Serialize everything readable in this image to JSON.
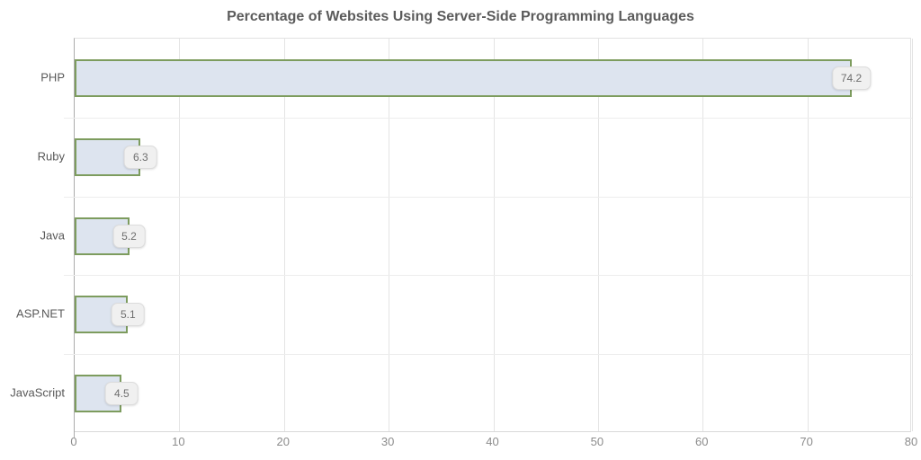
{
  "chart_data": {
    "type": "bar",
    "orientation": "horizontal",
    "title": "Percentage of Websites Using Server-Side Programming Languages",
    "categories": [
      "PHP",
      "Ruby",
      "Java",
      "ASP.NET",
      "JavaScript"
    ],
    "values": [
      74.2,
      6.3,
      5.2,
      5.1,
      4.5
    ],
    "value_labels": [
      "74.2",
      "6.3",
      "5.2",
      "5.1",
      "4.5"
    ],
    "xlabel": "",
    "ylabel": "",
    "xlim": [
      0,
      80
    ],
    "x_ticks": [
      0,
      10,
      20,
      30,
      40,
      50,
      60,
      70,
      80
    ],
    "grid": "on",
    "legend": "none",
    "colors": {
      "bar_fill": "#dde4ef",
      "bar_border": "#7d9c5e",
      "badge_bg": "#f0f0f0",
      "badge_border": "#dcdcdc",
      "badge_text": "#6e6e6e",
      "title_text": "#5b5b5b",
      "axis_tick_text": "#8c8c8c",
      "category_text": "#595959",
      "gridline_vertical": "#e4e4e4",
      "gridline_horizontal": "#ededed",
      "y_axis_line": "#ababab",
      "x_axis_line": "#d8d8d8"
    }
  }
}
